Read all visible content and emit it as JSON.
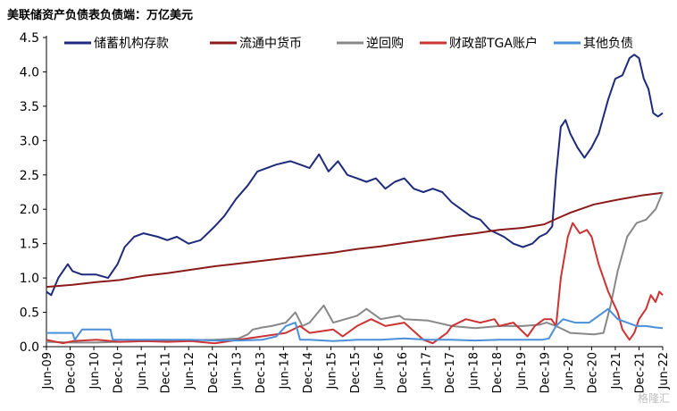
{
  "title": "美联储资产负债表负债端：万亿美元",
  "watermark": "格隆汇",
  "chart_data": {
    "type": "line",
    "title": "美联储资产负债表负债端：万亿美元",
    "xlabel": "",
    "ylabel": "",
    "ylim": [
      0,
      4.5
    ],
    "yticks": [
      "0.0",
      "0.5",
      "1.0",
      "1.5",
      "2.0",
      "2.5",
      "3.0",
      "3.5",
      "4.0",
      "4.5"
    ],
    "xticks": [
      "Jun-09",
      "Dec-09",
      "Jun-10",
      "Dec-10",
      "Jun-11",
      "Dec-11",
      "Jun-12",
      "Dec-12",
      "Jun-13",
      "Dec-13",
      "Jun-14",
      "Dec-14",
      "Jun-15",
      "Dec-15",
      "Jun-16",
      "Dec-16",
      "Jun-17",
      "Dec-17",
      "Jun-18",
      "Dec-18",
      "Jun-19",
      "Dec-19",
      "Jun-20",
      "Dec-20",
      "Jun-21",
      "Dec-21",
      "Jun-22"
    ],
    "grid": false,
    "legend_position": "top",
    "series": [
      {
        "name": "储蓄机构存款",
        "color": "#1f2a7a",
        "points": [
          [
            2009.45,
            0.8
          ],
          [
            2009.55,
            0.75
          ],
          [
            2009.7,
            1.0
          ],
          [
            2009.9,
            1.2
          ],
          [
            2010.0,
            1.1
          ],
          [
            2010.2,
            1.05
          ],
          [
            2010.5,
            1.05
          ],
          [
            2010.75,
            1.0
          ],
          [
            2010.95,
            1.2
          ],
          [
            2011.1,
            1.45
          ],
          [
            2011.3,
            1.6
          ],
          [
            2011.5,
            1.65
          ],
          [
            2011.8,
            1.6
          ],
          [
            2012.0,
            1.55
          ],
          [
            2012.2,
            1.6
          ],
          [
            2012.45,
            1.5
          ],
          [
            2012.7,
            1.55
          ],
          [
            2012.85,
            1.65
          ],
          [
            2013.0,
            1.75
          ],
          [
            2013.2,
            1.9
          ],
          [
            2013.45,
            2.15
          ],
          [
            2013.7,
            2.35
          ],
          [
            2013.9,
            2.55
          ],
          [
            2014.1,
            2.6
          ],
          [
            2014.3,
            2.65
          ],
          [
            2014.6,
            2.7
          ],
          [
            2014.8,
            2.65
          ],
          [
            2015.0,
            2.6
          ],
          [
            2015.2,
            2.8
          ],
          [
            2015.4,
            2.55
          ],
          [
            2015.6,
            2.7
          ],
          [
            2015.8,
            2.5
          ],
          [
            2016.0,
            2.45
          ],
          [
            2016.2,
            2.4
          ],
          [
            2016.4,
            2.45
          ],
          [
            2016.6,
            2.3
          ],
          [
            2016.8,
            2.4
          ],
          [
            2017.0,
            2.45
          ],
          [
            2017.2,
            2.3
          ],
          [
            2017.4,
            2.25
          ],
          [
            2017.6,
            2.3
          ],
          [
            2017.8,
            2.25
          ],
          [
            2018.0,
            2.1
          ],
          [
            2018.2,
            2.0
          ],
          [
            2018.4,
            1.9
          ],
          [
            2018.6,
            1.85
          ],
          [
            2018.8,
            1.7
          ],
          [
            2018.95,
            1.65
          ],
          [
            2019.1,
            1.6
          ],
          [
            2019.3,
            1.5
          ],
          [
            2019.5,
            1.45
          ],
          [
            2019.7,
            1.5
          ],
          [
            2019.85,
            1.6
          ],
          [
            2020.0,
            1.65
          ],
          [
            2020.12,
            1.75
          ],
          [
            2020.2,
            2.5
          ],
          [
            2020.3,
            3.2
          ],
          [
            2020.4,
            3.3
          ],
          [
            2020.5,
            3.1
          ],
          [
            2020.65,
            2.9
          ],
          [
            2020.8,
            2.75
          ],
          [
            2020.95,
            2.9
          ],
          [
            2021.1,
            3.1
          ],
          [
            2021.3,
            3.6
          ],
          [
            2021.45,
            3.9
          ],
          [
            2021.6,
            3.95
          ],
          [
            2021.75,
            4.2
          ],
          [
            2021.85,
            4.25
          ],
          [
            2021.95,
            4.2
          ],
          [
            2022.05,
            3.9
          ],
          [
            2022.15,
            3.75
          ],
          [
            2022.25,
            3.4
          ],
          [
            2022.35,
            3.35
          ],
          [
            2022.45,
            3.4
          ]
        ]
      },
      {
        "name": "流通中货币",
        "color": "#8b1a1a",
        "points": [
          [
            2009.45,
            0.87
          ],
          [
            2010.0,
            0.9
          ],
          [
            2010.5,
            0.94
          ],
          [
            2011.0,
            0.97
          ],
          [
            2011.5,
            1.03
          ],
          [
            2012.0,
            1.07
          ],
          [
            2012.5,
            1.12
          ],
          [
            2013.0,
            1.17
          ],
          [
            2013.5,
            1.21
          ],
          [
            2014.0,
            1.25
          ],
          [
            2014.5,
            1.29
          ],
          [
            2015.0,
            1.33
          ],
          [
            2015.5,
            1.37
          ],
          [
            2016.0,
            1.42
          ],
          [
            2016.5,
            1.46
          ],
          [
            2017.0,
            1.51
          ],
          [
            2017.5,
            1.56
          ],
          [
            2018.0,
            1.61
          ],
          [
            2018.5,
            1.65
          ],
          [
            2019.0,
            1.7
          ],
          [
            2019.5,
            1.73
          ],
          [
            2019.95,
            1.78
          ],
          [
            2020.2,
            1.86
          ],
          [
            2020.5,
            1.95
          ],
          [
            2021.0,
            2.07
          ],
          [
            2021.5,
            2.14
          ],
          [
            2022.0,
            2.2
          ],
          [
            2022.45,
            2.24
          ]
        ]
      },
      {
        "name": "逆回购",
        "color": "#888888",
        "points": [
          [
            2009.45,
            0.07
          ],
          [
            2010.0,
            0.06
          ],
          [
            2010.5,
            0.06
          ],
          [
            2011.0,
            0.07
          ],
          [
            2012.0,
            0.09
          ],
          [
            2013.0,
            0.1
          ],
          [
            2013.5,
            0.12
          ],
          [
            2013.7,
            0.18
          ],
          [
            2013.8,
            0.25
          ],
          [
            2014.0,
            0.28
          ],
          [
            2014.2,
            0.3
          ],
          [
            2014.5,
            0.35
          ],
          [
            2014.7,
            0.5
          ],
          [
            2014.85,
            0.3
          ],
          [
            2015.0,
            0.35
          ],
          [
            2015.3,
            0.6
          ],
          [
            2015.5,
            0.35
          ],
          [
            2016.0,
            0.45
          ],
          [
            2016.2,
            0.55
          ],
          [
            2016.5,
            0.4
          ],
          [
            2016.9,
            0.45
          ],
          [
            2017.0,
            0.4
          ],
          [
            2017.5,
            0.38
          ],
          [
            2018.0,
            0.3
          ],
          [
            2018.5,
            0.27
          ],
          [
            2019.0,
            0.3
          ],
          [
            2019.5,
            0.3
          ],
          [
            2019.85,
            0.32
          ],
          [
            2020.0,
            0.35
          ],
          [
            2020.2,
            0.3
          ],
          [
            2020.5,
            0.2
          ],
          [
            2021.0,
            0.18
          ],
          [
            2021.2,
            0.2
          ],
          [
            2021.35,
            0.6
          ],
          [
            2021.5,
            1.1
          ],
          [
            2021.7,
            1.6
          ],
          [
            2021.9,
            1.8
          ],
          [
            2022.1,
            1.85
          ],
          [
            2022.3,
            2.0
          ],
          [
            2022.45,
            2.25
          ]
        ]
      },
      {
        "name": "财政部TGA账户",
        "color": "#cc3333",
        "points": [
          [
            2009.45,
            0.1
          ],
          [
            2009.8,
            0.05
          ],
          [
            2010.0,
            0.08
          ],
          [
            2010.5,
            0.1
          ],
          [
            2011.0,
            0.07
          ],
          [
            2011.5,
            0.08
          ],
          [
            2012.0,
            0.07
          ],
          [
            2012.5,
            0.08
          ],
          [
            2013.0,
            0.05
          ],
          [
            2013.5,
            0.1
          ],
          [
            2014.0,
            0.15
          ],
          [
            2014.5,
            0.2
          ],
          [
            2014.8,
            0.3
          ],
          [
            2015.0,
            0.2
          ],
          [
            2015.5,
            0.25
          ],
          [
            2015.7,
            0.15
          ],
          [
            2016.0,
            0.3
          ],
          [
            2016.3,
            0.4
          ],
          [
            2016.6,
            0.3
          ],
          [
            2017.0,
            0.35
          ],
          [
            2017.4,
            0.1
          ],
          [
            2017.6,
            0.05
          ],
          [
            2017.9,
            0.2
          ],
          [
            2018.0,
            0.3
          ],
          [
            2018.3,
            0.4
          ],
          [
            2018.6,
            0.35
          ],
          [
            2018.9,
            0.4
          ],
          [
            2019.0,
            0.3
          ],
          [
            2019.3,
            0.35
          ],
          [
            2019.6,
            0.15
          ],
          [
            2019.75,
            0.3
          ],
          [
            2019.95,
            0.4
          ],
          [
            2020.1,
            0.4
          ],
          [
            2020.2,
            0.3
          ],
          [
            2020.3,
            1.0
          ],
          [
            2020.45,
            1.6
          ],
          [
            2020.55,
            1.8
          ],
          [
            2020.7,
            1.65
          ],
          [
            2020.85,
            1.7
          ],
          [
            2020.95,
            1.6
          ],
          [
            2021.1,
            1.2
          ],
          [
            2021.3,
            0.8
          ],
          [
            2021.5,
            0.5
          ],
          [
            2021.6,
            0.25
          ],
          [
            2021.75,
            0.1
          ],
          [
            2021.85,
            0.2
          ],
          [
            2021.95,
            0.4
          ],
          [
            2022.1,
            0.55
          ],
          [
            2022.2,
            0.75
          ],
          [
            2022.3,
            0.65
          ],
          [
            2022.38,
            0.8
          ],
          [
            2022.45,
            0.75
          ]
        ]
      },
      {
        "name": "其他负债",
        "color": "#4a90d9",
        "points": [
          [
            2009.45,
            0.2
          ],
          [
            2009.8,
            0.2
          ],
          [
            2010.0,
            0.2
          ],
          [
            2010.05,
            0.1
          ],
          [
            2010.2,
            0.25
          ],
          [
            2010.6,
            0.25
          ],
          [
            2010.8,
            0.25
          ],
          [
            2010.85,
            0.1
          ],
          [
            2011.5,
            0.1
          ],
          [
            2012.0,
            0.1
          ],
          [
            2012.5,
            0.1
          ],
          [
            2013.0,
            0.09
          ],
          [
            2013.5,
            0.09
          ],
          [
            2014.0,
            0.1
          ],
          [
            2014.3,
            0.15
          ],
          [
            2014.5,
            0.3
          ],
          [
            2014.7,
            0.35
          ],
          [
            2014.8,
            0.1
          ],
          [
            2015.0,
            0.1
          ],
          [
            2015.5,
            0.08
          ],
          [
            2016.0,
            0.1
          ],
          [
            2016.5,
            0.1
          ],
          [
            2017.0,
            0.12
          ],
          [
            2017.5,
            0.1
          ],
          [
            2018.0,
            0.1
          ],
          [
            2018.5,
            0.09
          ],
          [
            2019.0,
            0.1
          ],
          [
            2019.5,
            0.1
          ],
          [
            2019.9,
            0.1
          ],
          [
            2020.05,
            0.12
          ],
          [
            2020.2,
            0.3
          ],
          [
            2020.35,
            0.4
          ],
          [
            2020.6,
            0.35
          ],
          [
            2020.9,
            0.35
          ],
          [
            2021.0,
            0.4
          ],
          [
            2021.2,
            0.5
          ],
          [
            2021.3,
            0.55
          ],
          [
            2021.5,
            0.4
          ],
          [
            2021.7,
            0.35
          ],
          [
            2021.9,
            0.3
          ],
          [
            2022.1,
            0.3
          ],
          [
            2022.3,
            0.28
          ],
          [
            2022.45,
            0.27
          ]
        ]
      }
    ]
  }
}
